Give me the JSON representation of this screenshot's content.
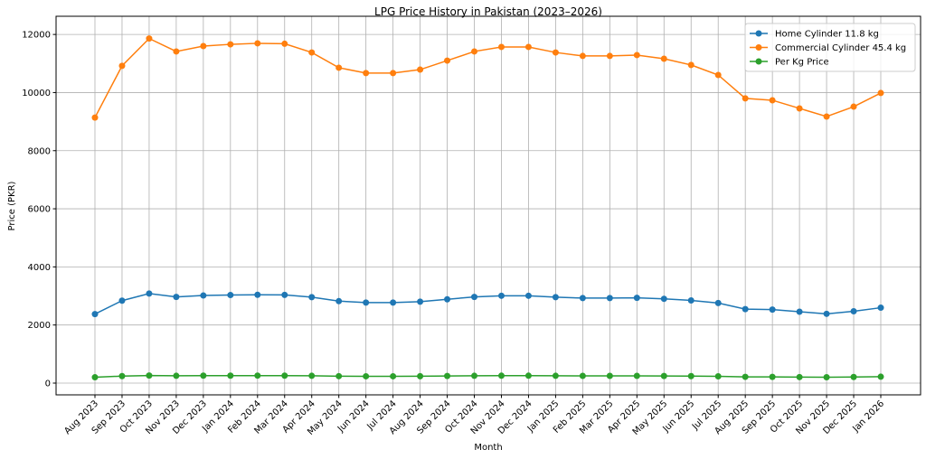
{
  "chart_data": {
    "type": "line",
    "title": "LPG Price History in Pakistan (2023–2026)",
    "xlabel": "Month",
    "ylabel": "Price (PKR)",
    "ylim": [
      -404,
      12626
    ],
    "yticks": [
      0,
      2000,
      4000,
      6000,
      8000,
      10000,
      12000
    ],
    "grid": true,
    "legend": "top-right",
    "categories": [
      "Aug 2023",
      "Sep 2023",
      "Oct 2023",
      "Nov 2023",
      "Dec 2023",
      "Jan 2024",
      "Feb 2024",
      "Mar 2024",
      "Apr 2024",
      "May 2024",
      "Jun 2024",
      "Jul 2024",
      "Aug 2024",
      "Sep 2024",
      "Oct 2024",
      "Nov 2024",
      "Dec 2024",
      "Jan 2025",
      "Feb 2025",
      "Mar 2025",
      "Apr 2025",
      "May 2025",
      "Jun 2025",
      "Jul 2025",
      "Aug 2025",
      "Sep 2025",
      "Oct 2025",
      "Nov 2025",
      "Dec 2025",
      "Jan 2026"
    ],
    "series": [
      {
        "name": "Home Cylinder 11.8 kg",
        "color": "#1f77b4",
        "values": [
          2376,
          2838,
          3082,
          2967,
          3015,
          3031,
          3040,
          3036,
          2958,
          2821,
          2773,
          2773,
          2804,
          2885,
          2967,
          3007,
          3007,
          2958,
          2927,
          2927,
          2934,
          2902,
          2846,
          2756,
          2547,
          2530,
          2457,
          2385,
          2473,
          2595
        ]
      },
      {
        "name": "Commercial Cylinder 45.4 kg",
        "color": "#ff7f0e",
        "values": [
          9140,
          10920,
          11860,
          11415,
          11600,
          11660,
          11695,
          11680,
          11380,
          10855,
          10670,
          10670,
          10790,
          11100,
          11415,
          11570,
          11570,
          11380,
          11260,
          11260,
          11290,
          11165,
          10950,
          10605,
          9800,
          9735,
          9455,
          9175,
          9515,
          9985
        ]
      },
      {
        "name": "Per Kg Price",
        "color": "#2ca02c",
        "values": [
          201,
          241,
          261,
          251,
          256,
          257,
          258,
          257,
          251,
          239,
          235,
          235,
          238,
          245,
          251,
          255,
          255,
          251,
          248,
          248,
          249,
          246,
          241,
          234,
          216,
          214,
          208,
          202,
          210,
          220
        ]
      }
    ]
  }
}
